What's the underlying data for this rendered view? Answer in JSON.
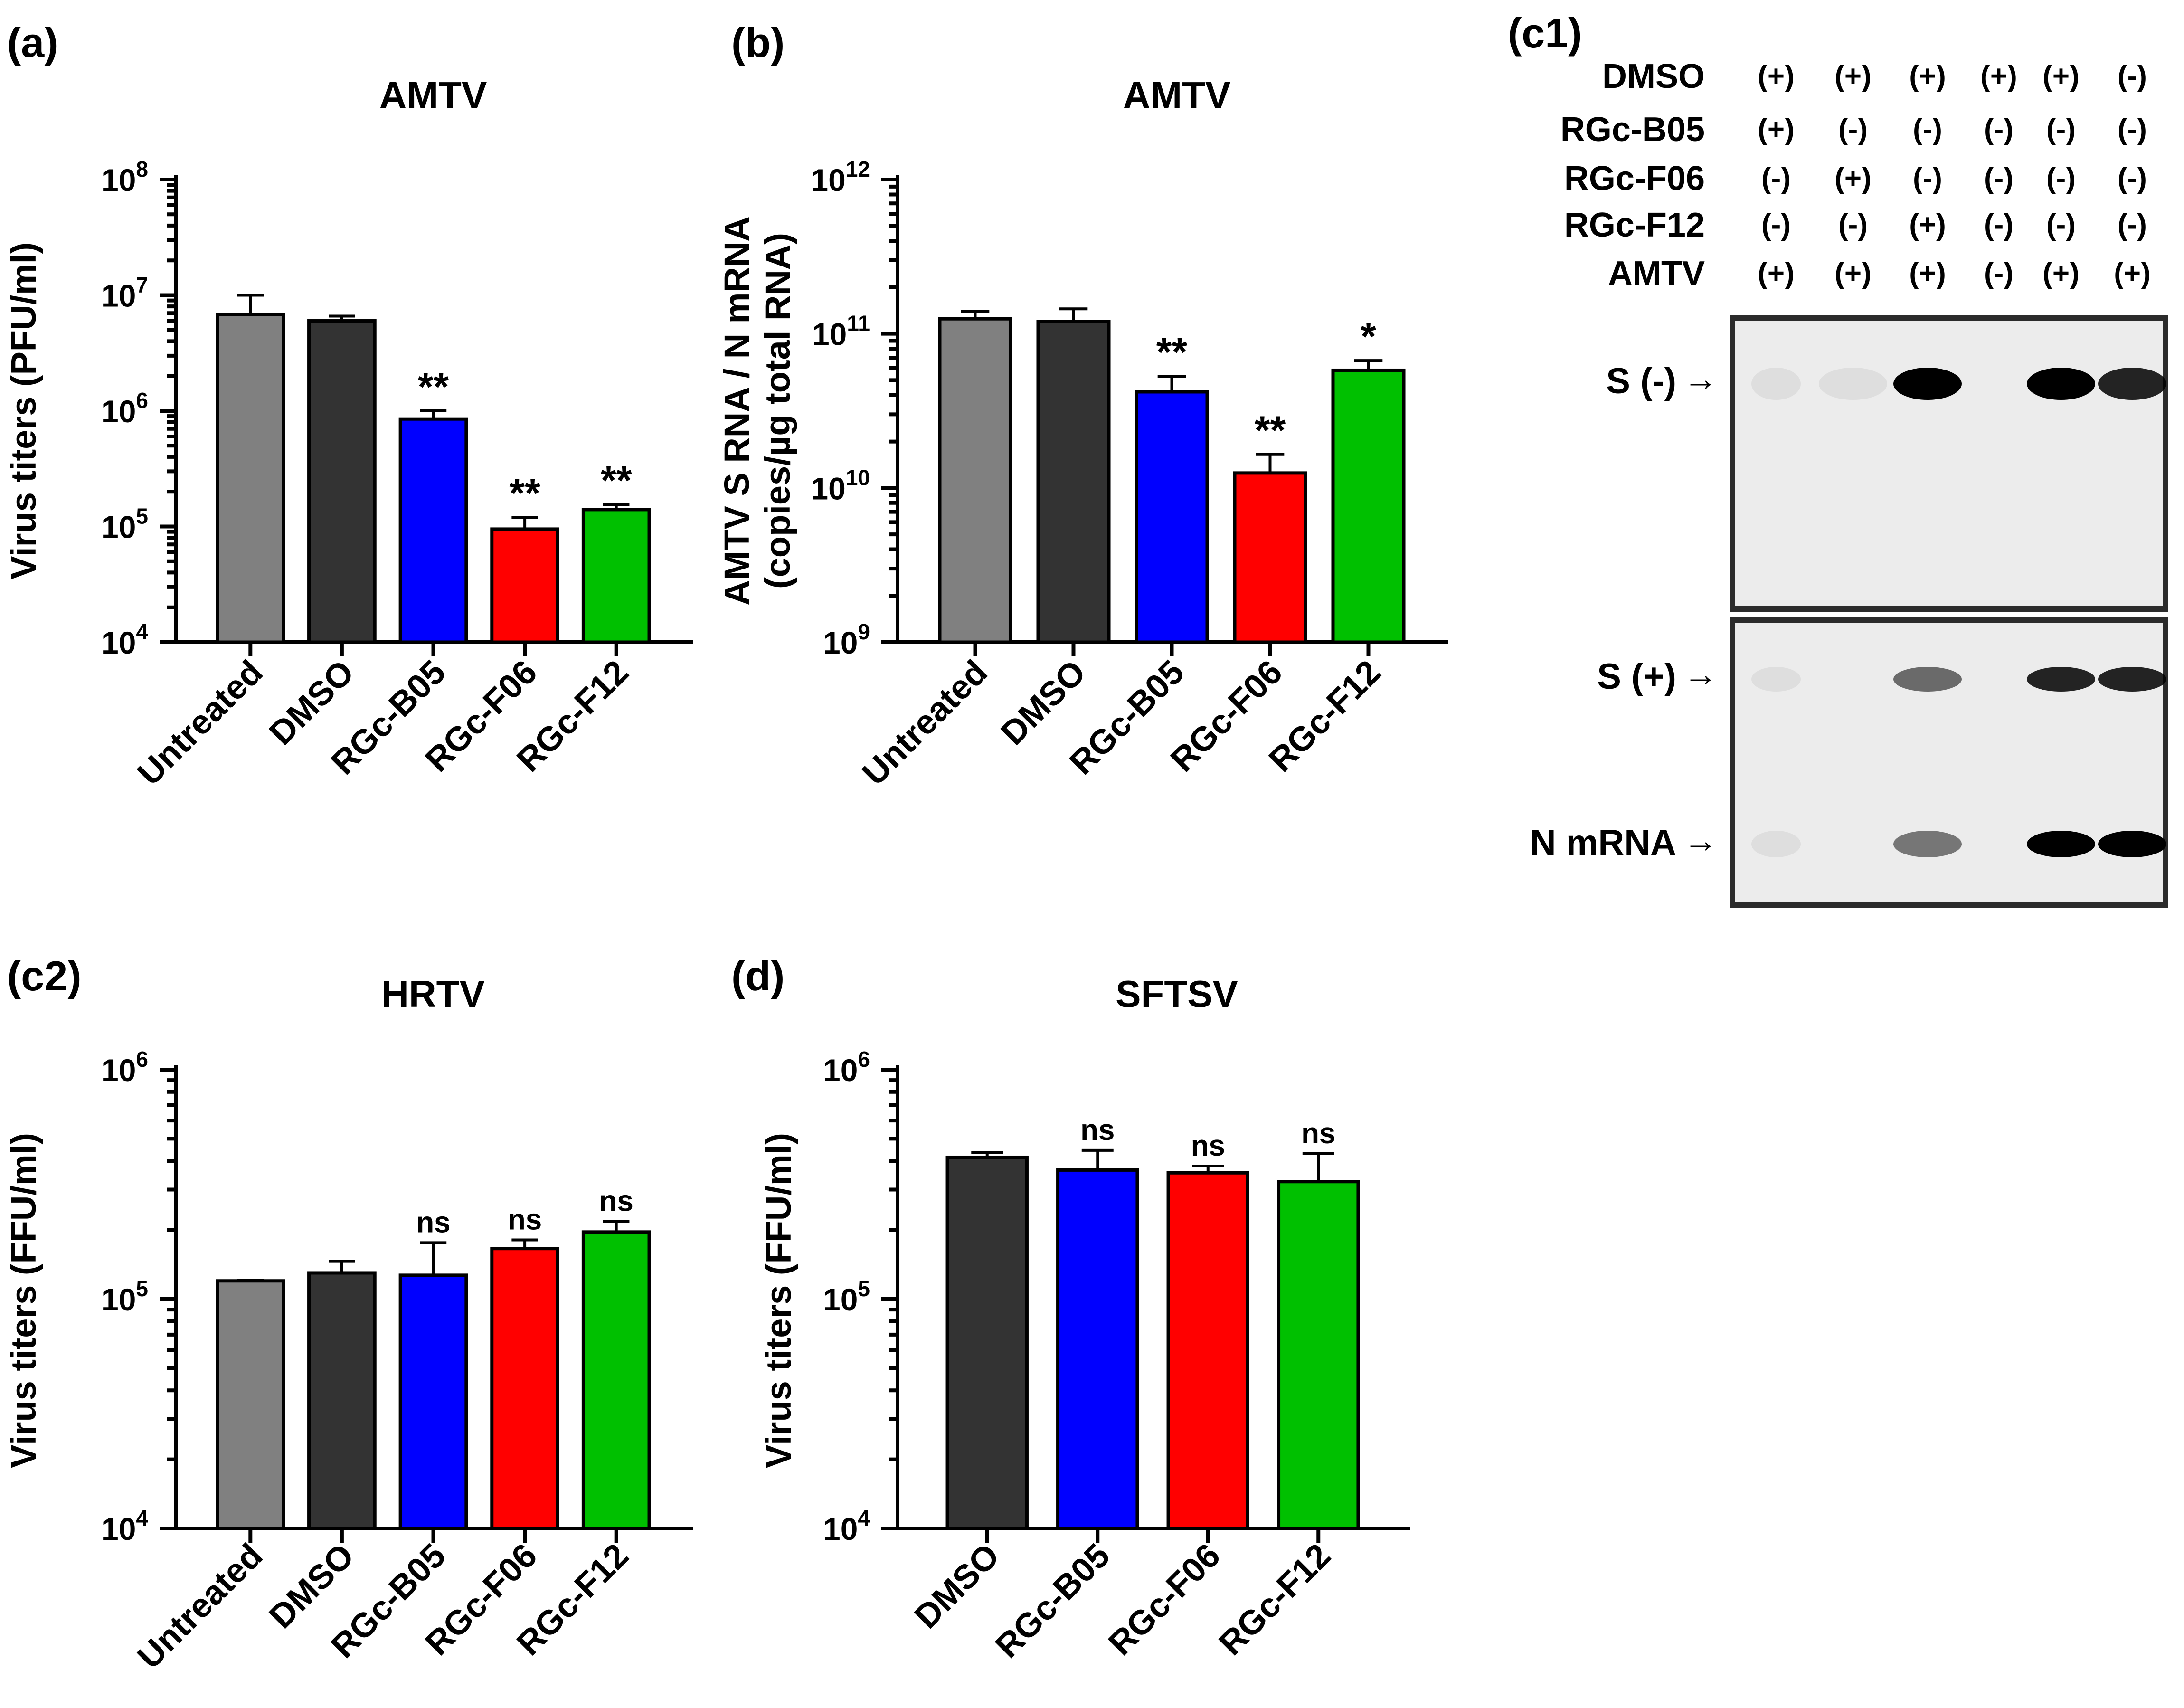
{
  "panels": {
    "a": {
      "label": "(a)"
    },
    "b": {
      "label": "(b)"
    },
    "c1": {
      "label": "(c1)"
    },
    "c2": {
      "label": "(c2)"
    },
    "d": {
      "label": "(d)"
    }
  },
  "colors": {
    "Untreated": "#808080",
    "DMSO": "#333333",
    "RGc-B05": "#0000ff",
    "RGc-F06": "#ff0000",
    "RGc-F12": "#00c000"
  },
  "chart_data": [
    {
      "id": "a",
      "type": "bar",
      "title": "AMTV",
      "ylabel": [
        "Virus titers (PFU/ml)"
      ],
      "yscale": "log",
      "ylim": [
        10000,
        100000000
      ],
      "yticks": [
        4,
        5,
        6,
        7,
        8
      ],
      "categories": [
        "Untreated",
        "DMSO",
        "RGc-B05",
        "RGc-F06",
        "RGc-F12"
      ],
      "values": [
        6800000,
        6000000,
        850000,
        95000,
        140000
      ],
      "errors": [
        10000000,
        6600000,
        1000000,
        120000,
        155000
      ],
      "significance": [
        "",
        "",
        "**",
        "**",
        "**"
      ]
    },
    {
      "id": "b",
      "type": "bar",
      "title": "AMTV",
      "ylabel": [
        "AMTV S RNA / N mRNA",
        "(copies/µg total RNA)"
      ],
      "yscale": "log",
      "ylim": [
        1000000000,
        1000000000000
      ],
      "yticks": [
        9,
        10,
        11,
        12
      ],
      "categories": [
        "Untreated",
        "DMSO",
        "RGc-B05",
        "RGc-F06",
        "RGc-F12"
      ],
      "values": [
        125000000000,
        120000000000,
        42000000000,
        12500000000,
        58000000000
      ],
      "errors": [
        140000000000,
        145000000000,
        53000000000,
        16500000000,
        67000000000
      ],
      "significance": [
        "",
        "",
        "**",
        "**",
        "*"
      ]
    },
    {
      "id": "c2",
      "type": "bar",
      "title": "HRTV",
      "ylabel": [
        "Virus titers (FFU/ml)"
      ],
      "yscale": "log",
      "ylim": [
        10000,
        1000000
      ],
      "yticks": [
        4,
        5,
        6
      ],
      "categories": [
        "Untreated",
        "DMSO",
        "RGc-B05",
        "RGc-F06",
        "RGc-F12"
      ],
      "values": [
        120000,
        130000,
        127000,
        166000,
        196000
      ],
      "errors": [
        121000,
        146000,
        176000,
        181000,
        218000
      ],
      "significance": [
        "",
        "",
        "ns",
        "ns",
        "ns"
      ]
    },
    {
      "id": "d",
      "type": "bar",
      "title": "SFTSV",
      "ylabel": [
        "Virus titers (FFU/ml)"
      ],
      "yscale": "log",
      "ylim": [
        10000,
        1000000
      ],
      "yticks": [
        4,
        5,
        6
      ],
      "categories": [
        "DMSO",
        "RGc-B05",
        "RGc-F06",
        "RGc-F12"
      ],
      "values": [
        415000,
        365000,
        355000,
        325000
      ],
      "errors": [
        435000,
        445000,
        380000,
        430000
      ],
      "significance": [
        "",
        "ns",
        "ns",
        "ns"
      ]
    }
  ],
  "blot": {
    "row_labels": [
      "DMSO",
      "RGc-B05",
      "RGc-F06",
      "RGc-F12",
      "AMTV"
    ],
    "treatment_matrix": [
      [
        "(+)",
        "(+)",
        "(+)",
        "(+)",
        "(+)",
        "(-)"
      ],
      [
        "(+)",
        "(-)",
        "(-)",
        "(-)",
        "(-)",
        "(-)"
      ],
      [
        "(-)",
        "(+)",
        "(-)",
        "(-)",
        "(-)",
        "(-)"
      ],
      [
        "(-)",
        "(-)",
        "(+)",
        "(-)",
        "(-)",
        "(-)"
      ],
      [
        "(+)",
        "(+)",
        "(+)",
        "(-)",
        "(+)",
        "(+)"
      ]
    ],
    "band_labels": [
      "S (-)",
      "S (+)",
      "N mRNA"
    ],
    "arrow_glyph": "→",
    "band_intensity": [
      [
        0.05,
        0.03,
        1.0,
        0.0,
        1.0,
        0.85
      ],
      [
        0.04,
        0.0,
        0.55,
        0.0,
        0.85,
        0.85
      ],
      [
        0.04,
        0.0,
        0.5,
        0.0,
        1.0,
        1.0
      ]
    ]
  }
}
